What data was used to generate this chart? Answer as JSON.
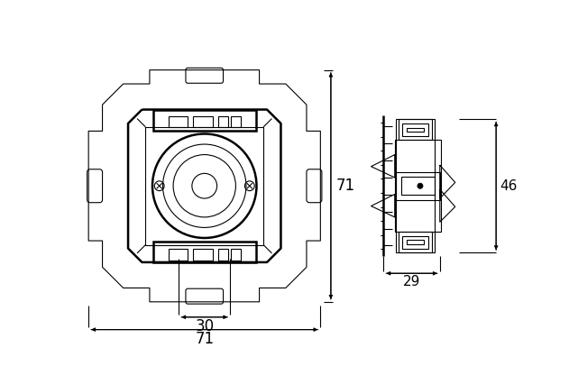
{
  "bg_color": "#ffffff",
  "line_color": "#000000",
  "lw": 0.8,
  "lw_thick": 1.8,
  "fig_width": 6.31,
  "fig_height": 4.16,
  "dpi": 100,
  "dim_30": "30",
  "dim_71_bottom": "71",
  "dim_71_side": "71",
  "dim_46": "46",
  "dim_29": "29"
}
